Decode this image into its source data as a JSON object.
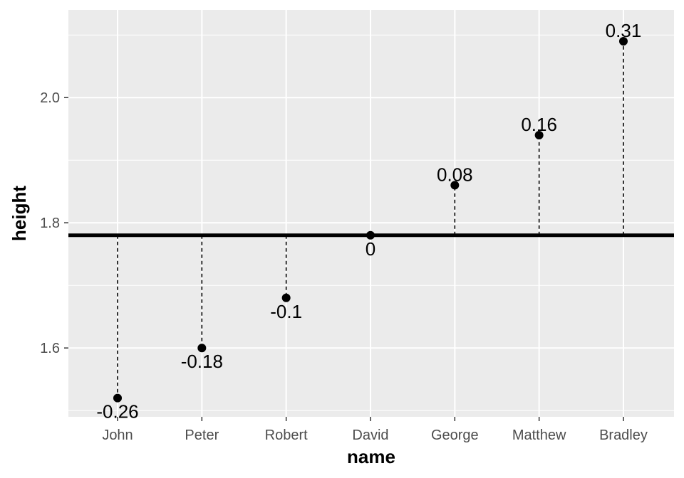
{
  "chart_data": {
    "type": "scatter",
    "xlabel": "name",
    "ylabel": "height",
    "categories": [
      "John",
      "Peter",
      "Robert",
      "David",
      "George",
      "Matthew",
      "Bradley"
    ],
    "values": [
      1.52,
      1.6,
      1.68,
      1.78,
      1.86,
      1.94,
      2.09
    ],
    "labels": [
      "-0.26",
      "-0.18",
      "-0.1",
      "0",
      "0.08",
      "0.16",
      "0.31"
    ],
    "reference_line": 1.78,
    "ylim": [
      1.49,
      2.14
    ],
    "yticks": [
      1.6,
      1.8,
      2.0
    ],
    "ytick_labels": [
      "1.6",
      "1.8",
      "2.0"
    ],
    "grid": true,
    "panel_color": "#ebebeb",
    "point_color": "#000000"
  }
}
